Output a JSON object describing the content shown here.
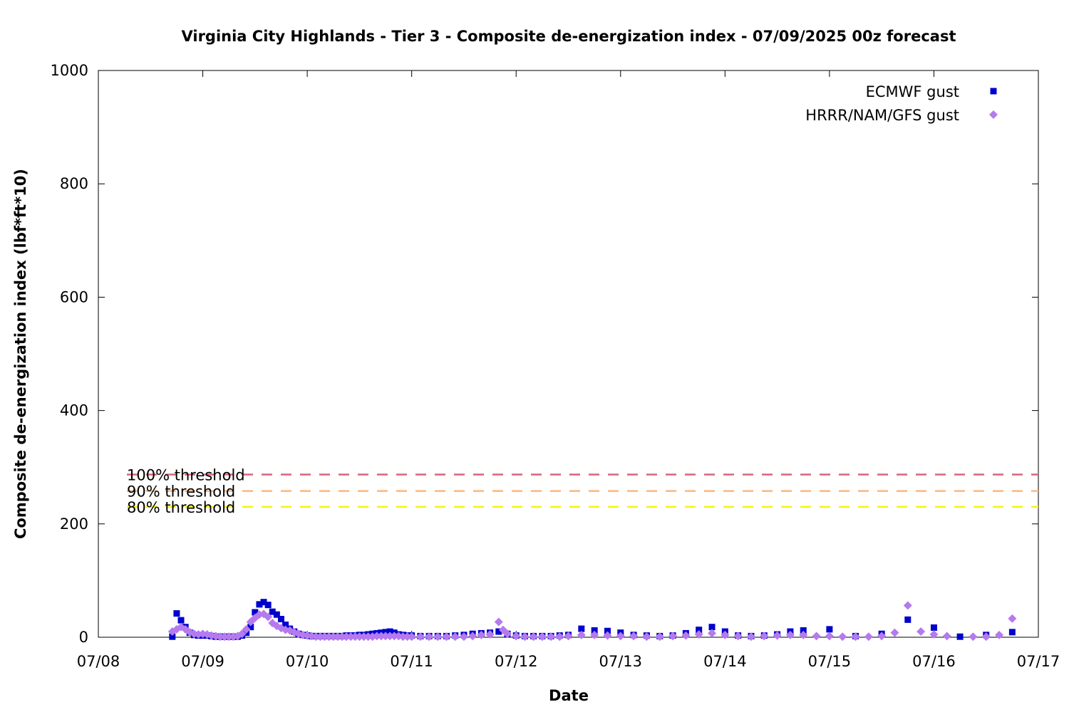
{
  "chart_data": {
    "type": "scatter",
    "title": "Virginia City Highlands - Tier 3 - Composite de-energization index - 07/09/2025 00z forecast",
    "xlabel": "Date",
    "ylabel": "Composite de-energization index (lbf*ft*10)",
    "x_unit": "date",
    "xlim": [
      "07/08",
      "07/17"
    ],
    "ylim": [
      0,
      1000
    ],
    "x_ticks": [
      "07/08",
      "07/09",
      "07/10",
      "07/11",
      "07/12",
      "07/13",
      "07/14",
      "07/15",
      "07/16",
      "07/17"
    ],
    "y_ticks": [
      0,
      200,
      400,
      600,
      800,
      1000
    ],
    "grid": false,
    "legend_position": "top-right",
    "thresholds": [
      {
        "label": "100% threshold",
        "value": 287,
        "color": "#d5657a"
      },
      {
        "label": "90% threshold",
        "value": 258,
        "color": "#fcb67e"
      },
      {
        "label": "80% threshold",
        "value": 230,
        "color": "#f5f50a"
      }
    ],
    "series": [
      {
        "name": "ECMWF gust",
        "marker": "square",
        "color": "#0000cd",
        "points": [
          [
            "07/08 17:00",
            1
          ],
          [
            "07/08 18:00",
            42
          ],
          [
            "07/08 19:00",
            30
          ],
          [
            "07/08 20:00",
            18
          ],
          [
            "07/08 21:00",
            8
          ],
          [
            "07/08 22:00",
            4
          ],
          [
            "07/08 23:00",
            3
          ],
          [
            "07/09 00:00",
            3
          ],
          [
            "07/09 01:00",
            3
          ],
          [
            "07/09 02:00",
            2
          ],
          [
            "07/09 03:00",
            1
          ],
          [
            "07/09 04:00",
            1
          ],
          [
            "07/09 05:00",
            1
          ],
          [
            "07/09 06:00",
            1
          ],
          [
            "07/09 07:00",
            1
          ],
          [
            "07/09 08:00",
            1
          ],
          [
            "07/09 09:00",
            3
          ],
          [
            "07/09 10:00",
            8
          ],
          [
            "07/09 11:00",
            18
          ],
          [
            "07/09 12:00",
            44
          ],
          [
            "07/09 13:00",
            58
          ],
          [
            "07/09 14:00",
            62
          ],
          [
            "07/09 15:00",
            57
          ],
          [
            "07/09 16:00",
            45
          ],
          [
            "07/09 17:00",
            40
          ],
          [
            "07/09 18:00",
            32
          ],
          [
            "07/09 19:00",
            22
          ],
          [
            "07/09 20:00",
            15
          ],
          [
            "07/09 21:00",
            10
          ],
          [
            "07/09 22:00",
            6
          ],
          [
            "07/09 23:00",
            4
          ],
          [
            "07/10 00:00",
            3
          ],
          [
            "07/10 01:00",
            2
          ],
          [
            "07/10 02:00",
            2
          ],
          [
            "07/10 03:00",
            2
          ],
          [
            "07/10 04:00",
            2
          ],
          [
            "07/10 05:00",
            2
          ],
          [
            "07/10 06:00",
            2
          ],
          [
            "07/10 07:00",
            2
          ],
          [
            "07/10 08:00",
            2
          ],
          [
            "07/10 09:00",
            3
          ],
          [
            "07/10 10:00",
            3
          ],
          [
            "07/10 11:00",
            3
          ],
          [
            "07/10 12:00",
            4
          ],
          [
            "07/10 13:00",
            4
          ],
          [
            "07/10 14:00",
            5
          ],
          [
            "07/10 15:00",
            6
          ],
          [
            "07/10 16:00",
            7
          ],
          [
            "07/10 17:00",
            8
          ],
          [
            "07/10 18:00",
            9
          ],
          [
            "07/10 19:00",
            10
          ],
          [
            "07/10 20:00",
            8
          ],
          [
            "07/10 21:00",
            5
          ],
          [
            "07/10 22:00",
            4
          ],
          [
            "07/10 23:00",
            3
          ],
          [
            "07/11 00:00",
            3
          ],
          [
            "07/11 02:00",
            2
          ],
          [
            "07/11 04:00",
            2
          ],
          [
            "07/11 06:00",
            2
          ],
          [
            "07/11 08:00",
            2
          ],
          [
            "07/11 10:00",
            3
          ],
          [
            "07/11 12:00",
            4
          ],
          [
            "07/11 14:00",
            6
          ],
          [
            "07/11 16:00",
            7
          ],
          [
            "07/11 18:00",
            8
          ],
          [
            "07/11 20:00",
            10
          ],
          [
            "07/11 22:00",
            6
          ],
          [
            "07/12 00:00",
            3
          ],
          [
            "07/12 02:00",
            2
          ],
          [
            "07/12 04:00",
            2
          ],
          [
            "07/12 06:00",
            2
          ],
          [
            "07/12 08:00",
            2
          ],
          [
            "07/12 10:00",
            3
          ],
          [
            "07/12 12:00",
            4
          ],
          [
            "07/12 15:00",
            15
          ],
          [
            "07/12 18:00",
            12
          ],
          [
            "07/12 21:00",
            11
          ],
          [
            "07/13 00:00",
            8
          ],
          [
            "07/13 03:00",
            4
          ],
          [
            "07/13 06:00",
            3
          ],
          [
            "07/13 09:00",
            2
          ],
          [
            "07/13 12:00",
            3
          ],
          [
            "07/13 15:00",
            7
          ],
          [
            "07/13 18:00",
            13
          ],
          [
            "07/13 21:00",
            18
          ],
          [
            "07/14 00:00",
            10
          ],
          [
            "07/14 03:00",
            3
          ],
          [
            "07/14 06:00",
            2
          ],
          [
            "07/14 09:00",
            3
          ],
          [
            "07/14 12:00",
            5
          ],
          [
            "07/14 15:00",
            10
          ],
          [
            "07/14 18:00",
            12
          ],
          [
            "07/15 00:00",
            14
          ],
          [
            "07/15 06:00",
            2
          ],
          [
            "07/15 12:00",
            6
          ],
          [
            "07/15 18:00",
            31
          ],
          [
            "07/16 00:00",
            17
          ],
          [
            "07/16 06:00",
            1
          ],
          [
            "07/16 12:00",
            4
          ],
          [
            "07/16 18:00",
            9
          ]
        ]
      },
      {
        "name": "HRRR/NAM/GFS gust",
        "marker": "diamond",
        "color": "#b57aee",
        "points": [
          [
            "07/08 17:00",
            10
          ],
          [
            "07/08 18:00",
            14
          ],
          [
            "07/08 19:00",
            18
          ],
          [
            "07/08 20:00",
            14
          ],
          [
            "07/08 21:00",
            9
          ],
          [
            "07/08 22:00",
            6
          ],
          [
            "07/08 23:00",
            5
          ],
          [
            "07/09 00:00",
            6
          ],
          [
            "07/09 01:00",
            5
          ],
          [
            "07/09 02:00",
            3
          ],
          [
            "07/09 03:00",
            2
          ],
          [
            "07/09 04:00",
            1
          ],
          [
            "07/09 05:00",
            1
          ],
          [
            "07/09 06:00",
            1
          ],
          [
            "07/09 07:00",
            1
          ],
          [
            "07/09 08:00",
            2
          ],
          [
            "07/09 09:00",
            6
          ],
          [
            "07/09 10:00",
            14
          ],
          [
            "07/09 11:00",
            27
          ],
          [
            "07/09 12:00",
            34
          ],
          [
            "07/09 13:00",
            40
          ],
          [
            "07/09 14:00",
            41
          ],
          [
            "07/09 15:00",
            36
          ],
          [
            "07/09 16:00",
            25
          ],
          [
            "07/09 17:00",
            20
          ],
          [
            "07/09 18:00",
            16
          ],
          [
            "07/09 19:00",
            13
          ],
          [
            "07/09 20:00",
            12
          ],
          [
            "07/09 21:00",
            9
          ],
          [
            "07/09 22:00",
            6
          ],
          [
            "07/09 23:00",
            4
          ],
          [
            "07/10 00:00",
            3
          ],
          [
            "07/10 01:00",
            2
          ],
          [
            "07/10 02:00",
            1
          ],
          [
            "07/10 03:00",
            1
          ],
          [
            "07/10 04:00",
            1
          ],
          [
            "07/10 05:00",
            1
          ],
          [
            "07/10 06:00",
            1
          ],
          [
            "07/10 07:00",
            1
          ],
          [
            "07/10 08:00",
            1
          ],
          [
            "07/10 09:00",
            1
          ],
          [
            "07/10 10:00",
            1
          ],
          [
            "07/10 11:00",
            1
          ],
          [
            "07/10 12:00",
            1
          ],
          [
            "07/10 13:00",
            1
          ],
          [
            "07/10 14:00",
            1
          ],
          [
            "07/10 15:00",
            1
          ],
          [
            "07/10 16:00",
            2
          ],
          [
            "07/10 17:00",
            2
          ],
          [
            "07/10 18:00",
            2
          ],
          [
            "07/10 19:00",
            2
          ],
          [
            "07/10 20:00",
            2
          ],
          [
            "07/10 21:00",
            2
          ],
          [
            "07/10 22:00",
            1
          ],
          [
            "07/10 23:00",
            1
          ],
          [
            "07/11 00:00",
            1
          ],
          [
            "07/11 02:00",
            1
          ],
          [
            "07/11 04:00",
            1
          ],
          [
            "07/11 06:00",
            1
          ],
          [
            "07/11 08:00",
            1
          ],
          [
            "07/11 10:00",
            1
          ],
          [
            "07/11 12:00",
            1
          ],
          [
            "07/11 14:00",
            2
          ],
          [
            "07/11 16:00",
            4
          ],
          [
            "07/11 18:00",
            5
          ],
          [
            "07/11 20:00",
            27
          ],
          [
            "07/11 21:00",
            13
          ],
          [
            "07/11 22:00",
            6
          ],
          [
            "07/12 00:00",
            2
          ],
          [
            "07/12 02:00",
            1
          ],
          [
            "07/12 04:00",
            1
          ],
          [
            "07/12 06:00",
            1
          ],
          [
            "07/12 08:00",
            1
          ],
          [
            "07/12 10:00",
            1
          ],
          [
            "07/12 12:00",
            2
          ],
          [
            "07/12 15:00",
            4
          ],
          [
            "07/12 18:00",
            4
          ],
          [
            "07/12 21:00",
            3
          ],
          [
            "07/13 00:00",
            2
          ],
          [
            "07/13 03:00",
            2
          ],
          [
            "07/13 06:00",
            1
          ],
          [
            "07/13 09:00",
            1
          ],
          [
            "07/13 12:00",
            2
          ],
          [
            "07/13 15:00",
            3
          ],
          [
            "07/13 18:00",
            5
          ],
          [
            "07/13 21:00",
            7
          ],
          [
            "07/14 00:00",
            4
          ],
          [
            "07/14 03:00",
            2
          ],
          [
            "07/14 06:00",
            1
          ],
          [
            "07/14 09:00",
            2
          ],
          [
            "07/14 12:00",
            3
          ],
          [
            "07/14 15:00",
            4
          ],
          [
            "07/14 18:00",
            4
          ],
          [
            "07/14 21:00",
            2
          ],
          [
            "07/15 00:00",
            2
          ],
          [
            "07/15 03:00",
            1
          ],
          [
            "07/15 06:00",
            1
          ],
          [
            "07/15 09:00",
            1
          ],
          [
            "07/15 12:00",
            2
          ],
          [
            "07/15 15:00",
            8
          ],
          [
            "07/15 18:00",
            56
          ],
          [
            "07/15 21:00",
            10
          ],
          [
            "07/16 00:00",
            5
          ],
          [
            "07/16 03:00",
            2
          ],
          [
            "07/16 09:00",
            1
          ],
          [
            "07/16 12:00",
            1
          ],
          [
            "07/16 15:00",
            4
          ],
          [
            "07/16 18:00",
            33
          ]
        ]
      }
    ]
  }
}
